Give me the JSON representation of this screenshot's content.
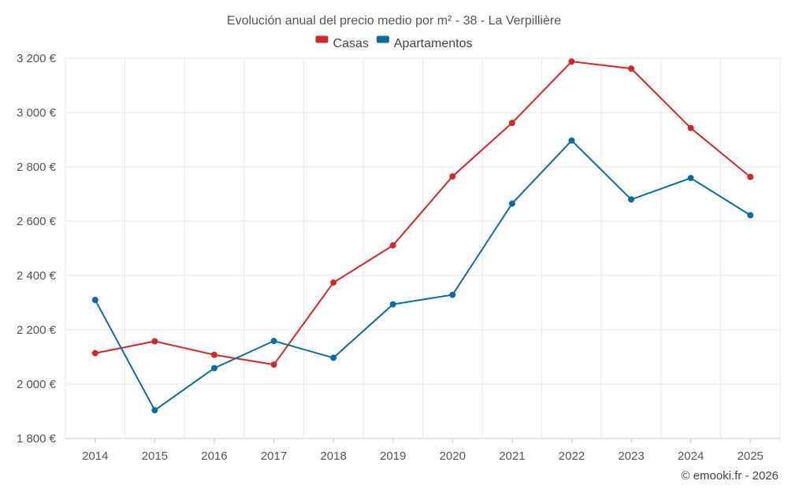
{
  "chart_data": {
    "type": "line",
    "title": "Evolución anual del precio medio por m² - 38 - La Verpillière",
    "categories": [
      "2014",
      "2015",
      "2016",
      "2017",
      "2018",
      "2019",
      "2020",
      "2021",
      "2022",
      "2023",
      "2024",
      "2025"
    ],
    "series": [
      {
        "name": "Casas",
        "color": "#d62728",
        "values": [
          2114,
          2158,
          2108,
          2072,
          2374,
          2511,
          2765,
          2962,
          3188,
          3162,
          2943,
          2763
        ]
      },
      {
        "name": "Apartamentos",
        "color": "#0a6ba1",
        "values": [
          2310,
          1904,
          2059,
          2159,
          2097,
          2294,
          2329,
          2665,
          2897,
          2680,
          2759,
          2622
        ]
      }
    ],
    "ylim": [
      1800,
      3200
    ],
    "yticks": [
      1800,
      2000,
      2200,
      2400,
      2600,
      2800,
      3000,
      3200
    ],
    "ytick_labels": [
      "1 800 €",
      "2 000 €",
      "2 200 €",
      "2 400 €",
      "2 600 €",
      "2 800 €",
      "3 000 €",
      "3 200 €"
    ],
    "xlabel": "",
    "ylabel": "",
    "grid": true,
    "legend_position": "top-center"
  },
  "credit": "© emooki.fr - 2026"
}
